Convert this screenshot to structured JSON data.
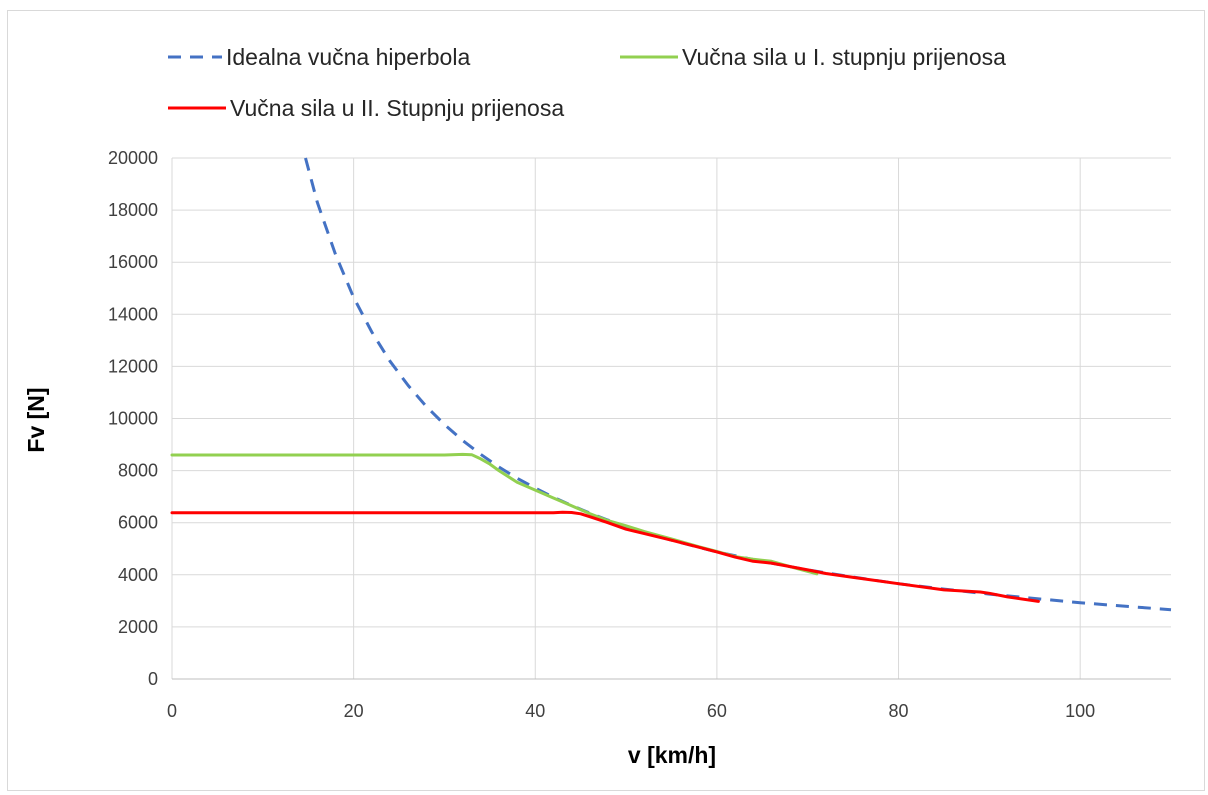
{
  "chart_data": {
    "type": "line",
    "title": "",
    "xlabel": "v [km/h]",
    "ylabel": "Fv [N]",
    "xlim": [
      0,
      110
    ],
    "ylim": [
      0,
      20000
    ],
    "xticks": [
      0,
      20,
      40,
      60,
      80,
      100
    ],
    "yticks": [
      0,
      2000,
      4000,
      6000,
      8000,
      10000,
      12000,
      14000,
      16000,
      18000,
      20000
    ],
    "grid": true,
    "legend_position": "top",
    "series": [
      {
        "name": "Idealna vučna hiperbola",
        "color": "#4472c4",
        "style": "dashed",
        "x": [
          14.7,
          16,
          18,
          20,
          22,
          24,
          26,
          28,
          30,
          32,
          34,
          36,
          38,
          40,
          42,
          44,
          46,
          48,
          50,
          55,
          60,
          65,
          70,
          75,
          80,
          85,
          90,
          95,
          100,
          105,
          110
        ],
        "y": [
          20000,
          18300,
          16300,
          14650,
          13320,
          12200,
          11270,
          10460,
          9770,
          9160,
          8620,
          8140,
          7710,
          7330,
          6980,
          6660,
          6370,
          6100,
          5860,
          5330,
          4880,
          4510,
          4190,
          3910,
          3660,
          3450,
          3260,
          3090,
          2930,
          2790,
          2660
        ]
      },
      {
        "name": "Vučna sila u I. stupnju prijenosa",
        "color": "#92d050",
        "style": "solid",
        "x": [
          0,
          10,
          20,
          30,
          32,
          33,
          34,
          35,
          36,
          38,
          40,
          42,
          44,
          46,
          48,
          50,
          52,
          55,
          58,
          60,
          62,
          64,
          66,
          68,
          71
        ],
        "y": [
          8600,
          8600,
          8600,
          8600,
          8620,
          8610,
          8450,
          8250,
          8000,
          7550,
          7250,
          6950,
          6650,
          6350,
          6080,
          5880,
          5660,
          5380,
          5080,
          4900,
          4700,
          4600,
          4520,
          4320,
          4040
        ]
      },
      {
        "name": "Vučna sila u II. Stupnju prijenosa",
        "color": "#ff0000",
        "style": "solid",
        "x": [
          0,
          10,
          20,
          30,
          40,
          42,
          43,
          44,
          45,
          46,
          48,
          50,
          52,
          55,
          58,
          60,
          62,
          64,
          66,
          68,
          70,
          72,
          75,
          80,
          85,
          89,
          90,
          92,
          95.4
        ],
        "y": [
          6380,
          6380,
          6380,
          6380,
          6380,
          6380,
          6400,
          6390,
          6340,
          6230,
          6000,
          5750,
          5580,
          5330,
          5060,
          4880,
          4680,
          4520,
          4450,
          4320,
          4190,
          4050,
          3900,
          3660,
          3420,
          3340,
          3290,
          3150,
          2980
        ]
      }
    ]
  }
}
